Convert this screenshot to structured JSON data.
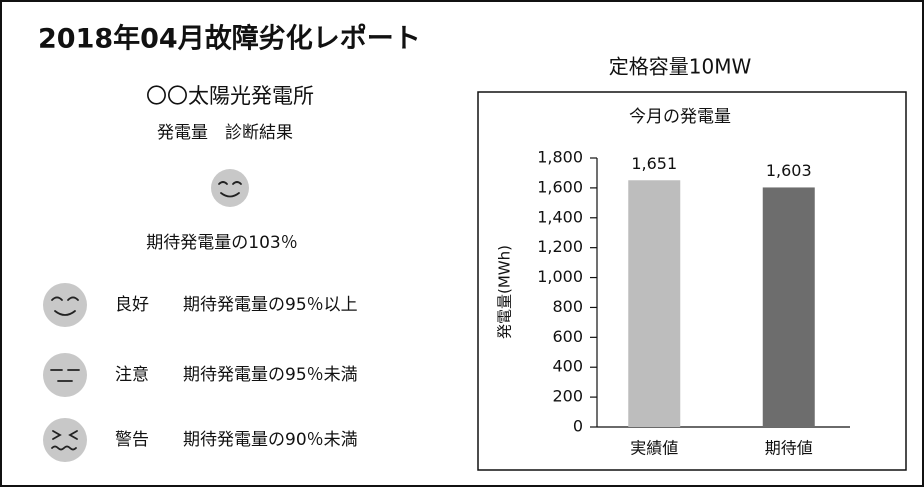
{
  "title": "2018年04月故障劣化レポート",
  "plant": "〇〇太陽光発電所",
  "subtitle": "発電量　診断結果",
  "result": "期待発電量の103％",
  "legend": [
    {
      "label": "良好",
      "desc": "期待発電量の95％以上"
    },
    {
      "label": "注意",
      "desc": "期待発電量の95％未満"
    },
    {
      "label": "警告",
      "desc": "期待発電量の90％未満"
    }
  ],
  "capacity": "定格容量10MW",
  "chart_data": {
    "type": "bar",
    "title": "今月の発電量",
    "y_label": "発電量(MWh)",
    "categories": [
      "実績値",
      "期待値"
    ],
    "values": [
      1651,
      1603
    ],
    "value_labels": [
      "1,651",
      "1,603"
    ],
    "colors": [
      "#bdbdbd",
      "#6d6d6d"
    ],
    "ylim": [
      0,
      1800
    ],
    "yticks": [
      0,
      200,
      400,
      600,
      800,
      {
        "value": 1000,
        "label": "1,000"
      },
      {
        "value": 1200,
        "label": "1,200"
      },
      {
        "value": 1400,
        "label": "1,400"
      },
      {
        "value": 1600,
        "label": "1,600"
      },
      {
        "value": 1800,
        "label": "1,800"
      }
    ]
  }
}
